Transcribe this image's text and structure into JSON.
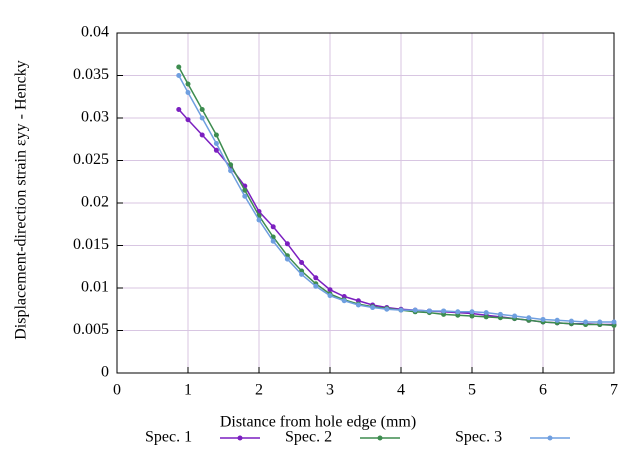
{
  "chart_data": {
    "type": "line",
    "xlabel": "Distance from hole edge (mm)",
    "ylabel": "Displacement-direction strain εyy - Hencky",
    "x": [
      0.87,
      1.0,
      1.2,
      1.4,
      1.6,
      1.8,
      2.0,
      2.2,
      2.4,
      2.6,
      2.8,
      3.0,
      3.2,
      3.4,
      3.6,
      3.8,
      4.0,
      4.2,
      4.4,
      4.6,
      4.8,
      5.0,
      5.2,
      5.4,
      5.6,
      5.8,
      6.0,
      6.2,
      6.4,
      6.6,
      6.8,
      7.0
    ],
    "series": [
      {
        "name": "Spec. 1",
        "color": "#7b1fc0",
        "values": [
          0.031,
          0.0298,
          0.028,
          0.0262,
          0.0242,
          0.022,
          0.019,
          0.0172,
          0.0152,
          0.013,
          0.0112,
          0.0098,
          0.009,
          0.0085,
          0.008,
          0.0077,
          0.0075,
          0.0074,
          0.0073,
          0.0072,
          0.0071,
          0.007,
          0.0068,
          0.0066,
          0.0064,
          0.0062,
          0.006,
          0.0059,
          0.0058,
          0.0058,
          0.0057,
          0.0057
        ]
      },
      {
        "name": "Spec. 2",
        "color": "#3d8c4f",
        "values": [
          0.036,
          0.034,
          0.031,
          0.028,
          0.0245,
          0.0215,
          0.0185,
          0.016,
          0.0138,
          0.012,
          0.0105,
          0.0093,
          0.0086,
          0.0081,
          0.0078,
          0.0076,
          0.0074,
          0.0072,
          0.0071,
          0.0069,
          0.0068,
          0.0067,
          0.0066,
          0.0065,
          0.0064,
          0.0062,
          0.006,
          0.0059,
          0.0058,
          0.0057,
          0.0057,
          0.0056
        ]
      },
      {
        "name": "Spec. 3",
        "color": "#6f9fe0",
        "values": [
          0.035,
          0.033,
          0.03,
          0.027,
          0.0238,
          0.0208,
          0.018,
          0.0155,
          0.0134,
          0.0116,
          0.0102,
          0.0091,
          0.0085,
          0.008,
          0.0077,
          0.0075,
          0.0074,
          0.0074,
          0.0073,
          0.0073,
          0.0072,
          0.0072,
          0.0071,
          0.0069,
          0.0067,
          0.0065,
          0.0063,
          0.0062,
          0.0061,
          0.006,
          0.006,
          0.006
        ]
      }
    ],
    "xlim": [
      0,
      7
    ],
    "xticks": [
      0,
      1,
      2,
      3,
      4,
      5,
      6,
      7
    ],
    "ylim": [
      0,
      0.04
    ],
    "yticks": [
      0,
      0.005,
      0.01,
      0.015,
      0.02,
      0.025,
      0.03,
      0.035,
      0.04
    ],
    "grid": true,
    "legend": "bottom"
  }
}
